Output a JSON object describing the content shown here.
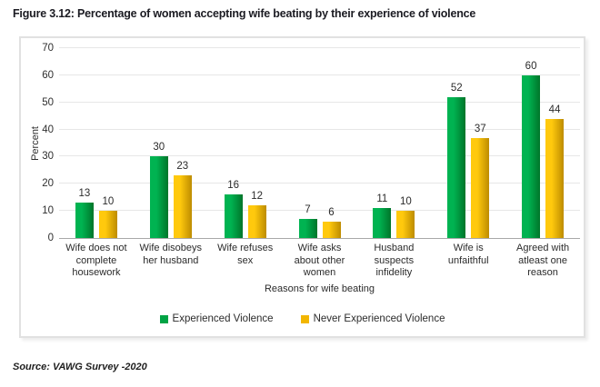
{
  "figure": {
    "title": "Figure 3.12: Percentage of women accepting wife beating by their experience of violence",
    "source": "Source: VAWG Survey -2020"
  },
  "chart_data": {
    "type": "bar",
    "title": "Figure 3.12: Percentage of women accepting wife beating by their experience of violence",
    "xlabel": "Reasons for wife beating",
    "ylabel": "Percent",
    "ylim": [
      0,
      70
    ],
    "ytick_step": 10,
    "grid": true,
    "legend_position": "bottom-center",
    "categories": [
      "Wife does not complete housework",
      "Wife disobeys her husband",
      "Wife refuses sex",
      "Wife asks about other women",
      "Husband suspects infidelity",
      "Wife is unfaithful",
      "Agreed with atleast one reason"
    ],
    "series": [
      {
        "name": "Experienced Violence",
        "color": "#00a344",
        "color_gradient": [
          "#00b351",
          "#00752a"
        ],
        "values": [
          13,
          30,
          16,
          7,
          11,
          52,
          60
        ]
      },
      {
        "name": "Never Experienced Violence",
        "color": "#f2b600",
        "color_gradient": [
          "#ffc90d",
          "#bd8c00"
        ],
        "values": [
          10,
          23,
          12,
          6,
          10,
          37,
          44
        ]
      }
    ]
  }
}
